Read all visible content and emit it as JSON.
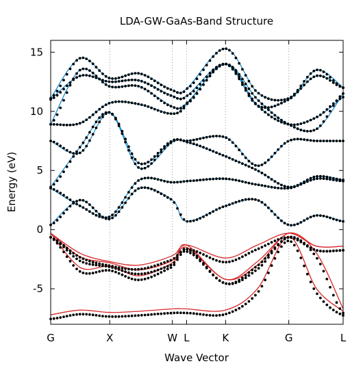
{
  "chart_data": {
    "type": "line",
    "title": "LDA-GW-GaAs-Band Structure",
    "xlabel": "Wave Vector",
    "ylabel": "Energy (eV)",
    "ylim": [
      -8,
      16
    ],
    "yticks": [
      15,
      10,
      5,
      0,
      -5
    ],
    "ytick_labels": [
      "15",
      "10",
      "5",
      "0",
      "-5"
    ],
    "k_points": [
      {
        "label": "G",
        "x": 0
      },
      {
        "label": "X",
        "x": 1
      },
      {
        "label": "W",
        "x": 2.06
      },
      {
        "label": "L",
        "x": 2.3
      },
      {
        "label": "K",
        "x": 2.96
      },
      {
        "label": "G",
        "x": 4.03
      },
      {
        "label": "L",
        "x": 4.95
      }
    ],
    "grid": "vertical dotted lines at high-symmetry points",
    "colors": {
      "conduction": "#1f8fcf",
      "valence": "#d62728",
      "dots": "#000000",
      "grid": "#999999"
    },
    "series": [
      {
        "group": "valence",
        "x": [
          0,
          0.5,
          1.0,
          1.5,
          2.06,
          2.3,
          2.96,
          3.5,
          4.03,
          4.5,
          4.95
        ],
        "y": [
          -7.2,
          -6.8,
          -7.0,
          -6.9,
          -6.7,
          -6.7,
          -6.8,
          -5.0,
          -0.6,
          -5.0,
          -6.9
        ]
      },
      {
        "group": "valence",
        "x": [
          0,
          0.5,
          1.0,
          1.5,
          2.06,
          2.3,
          2.96,
          3.5,
          4.03,
          4.5,
          4.95
        ],
        "y": [
          -0.3,
          -2.3,
          -2.8,
          -3.4,
          -2.6,
          -1.3,
          -4.2,
          -2.7,
          -0.3,
          -1.4,
          -1.4
        ]
      },
      {
        "group": "valence",
        "x": [
          0,
          0.5,
          1.0,
          1.5,
          2.06,
          2.3,
          2.96,
          3.5,
          4.03,
          4.5,
          4.95
        ],
        "y": [
          -0.3,
          -2.0,
          -2.7,
          -3.0,
          -2.2,
          -1.3,
          -2.4,
          -1.3,
          -0.3,
          -1.4,
          -1.4
        ]
      },
      {
        "group": "valence",
        "x": [
          0,
          0.5,
          1.0,
          1.5,
          2.06,
          2.3,
          2.96,
          3.5,
          4.03,
          4.5,
          4.95
        ],
        "y": [
          -0.3,
          -3.2,
          -3.1,
          -3.9,
          -2.8,
          -1.5,
          -4.2,
          -3.0,
          -0.3,
          -2.0,
          -6.7
        ]
      },
      {
        "group": "conduction",
        "x": [
          0,
          0.5,
          1.0,
          1.5,
          2.06,
          2.3,
          2.96,
          3.5,
          4.03,
          4.5,
          4.95
        ],
        "y": [
          0.4,
          2.5,
          0.9,
          3.5,
          2.5,
          0.7,
          2.0,
          2.5,
          0.4,
          1.2,
          0.7
        ]
      },
      {
        "group": "conduction",
        "x": [
          0,
          0.5,
          1.0,
          1.5,
          2.06,
          2.3,
          2.96,
          3.5,
          4.03,
          4.5,
          4.95
        ],
        "y": [
          3.5,
          2.0,
          1.1,
          4.2,
          4.0,
          4.1,
          4.3,
          3.8,
          3.5,
          4.3,
          4.1
        ]
      },
      {
        "group": "conduction",
        "x": [
          0,
          0.5,
          1.0,
          1.5,
          2.06,
          2.3,
          2.96,
          3.5,
          4.03,
          4.5,
          4.95
        ],
        "y": [
          3.6,
          7.0,
          9.9,
          5.2,
          7.4,
          7.4,
          6.2,
          5.0,
          3.6,
          4.5,
          4.2
        ]
      },
      {
        "group": "conduction",
        "x": [
          0,
          0.5,
          1.0,
          1.5,
          2.06,
          2.3,
          2.96,
          3.5,
          4.03,
          4.5,
          4.95
        ],
        "y": [
          7.5,
          6.5,
          9.9,
          5.6,
          7.5,
          7.5,
          7.8,
          5.4,
          7.5,
          7.5,
          7.5
        ]
      },
      {
        "group": "conduction",
        "x": [
          0,
          0.5,
          1.0,
          1.5,
          2.06,
          2.3,
          2.96,
          3.5,
          4.03,
          4.5,
          4.95
        ],
        "y": [
          8.9,
          9.0,
          10.7,
          10.6,
          9.8,
          10.6,
          14.0,
          10.5,
          8.9,
          9.5,
          11.2
        ]
      },
      {
        "group": "conduction",
        "x": [
          0,
          0.5,
          1.0,
          1.5,
          2.06,
          2.3,
          2.96,
          3.5,
          4.03,
          4.5,
          4.95
        ],
        "y": [
          8.9,
          13.5,
          12.1,
          12.1,
          10.4,
          10.7,
          14.0,
          11.0,
          8.9,
          8.5,
          11.5
        ]
      },
      {
        "group": "conduction",
        "x": [
          0,
          0.5,
          1.0,
          1.5,
          2.06,
          2.3,
          2.96,
          3.5,
          4.03,
          4.5,
          4.95
        ],
        "y": [
          11.0,
          13.0,
          12.5,
          12.6,
          11.3,
          11.3,
          14.0,
          10.5,
          11.0,
          13.0,
          12.0
        ]
      },
      {
        "group": "conduction",
        "x": [
          0,
          0.5,
          1.0,
          1.5,
          2.06,
          2.3,
          2.96,
          3.5,
          4.03,
          4.5,
          4.95
        ],
        "y": [
          11.1,
          14.5,
          12.8,
          13.2,
          11.8,
          11.9,
          15.3,
          11.6,
          11.1,
          13.5,
          12.0
        ]
      }
    ]
  }
}
